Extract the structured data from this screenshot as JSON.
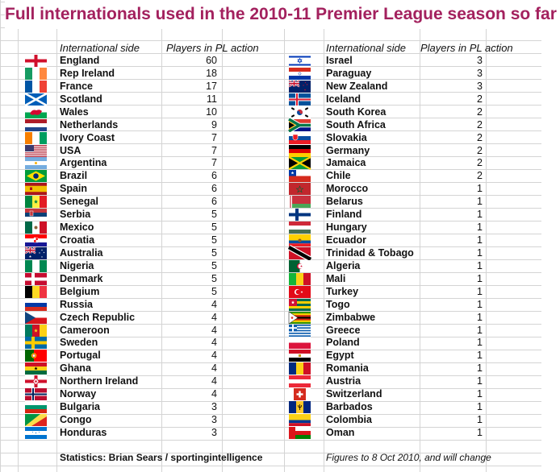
{
  "title": "Full internationals used in the 2010-11 Premier League season so far",
  "headers": {
    "side": "International side",
    "players": "Players in PL action"
  },
  "left": [
    {
      "name": "England",
      "count": "60",
      "flag": "england-flag"
    },
    {
      "name": "Rep Ireland",
      "count": "18",
      "flag": "ireland-flag"
    },
    {
      "name": "France",
      "count": "17",
      "flag": "france-flag"
    },
    {
      "name": "Scotland",
      "count": "11",
      "flag": "scotland-flag"
    },
    {
      "name": "Wales",
      "count": "10",
      "flag": "wales-flag"
    },
    {
      "name": "Netherlands",
      "count": "9",
      "flag": "netherlands-flag"
    },
    {
      "name": "Ivory Coast",
      "count": "7",
      "flag": "ivory-coast-flag"
    },
    {
      "name": "USA",
      "count": "7",
      "flag": "usa-flag"
    },
    {
      "name": "Argentina",
      "count": "7",
      "flag": "argentina-flag"
    },
    {
      "name": "Brazil",
      "count": "6",
      "flag": "brazil-flag"
    },
    {
      "name": "Spain",
      "count": "6",
      "flag": "spain-flag"
    },
    {
      "name": "Senegal",
      "count": "6",
      "flag": "senegal-flag"
    },
    {
      "name": "Serbia",
      "count": "5",
      "flag": "serbia-flag"
    },
    {
      "name": "Mexico",
      "count": "5",
      "flag": "mexico-flag"
    },
    {
      "name": "Croatia",
      "count": "5",
      "flag": "croatia-flag"
    },
    {
      "name": "Australia",
      "count": "5",
      "flag": "australia-flag"
    },
    {
      "name": "Nigeria",
      "count": "5",
      "flag": "nigeria-flag"
    },
    {
      "name": "Denmark",
      "count": "5",
      "flag": "denmark-flag"
    },
    {
      "name": "Belgium",
      "count": "5",
      "flag": "belgium-flag"
    },
    {
      "name": "Russia",
      "count": "4",
      "flag": "russia-flag"
    },
    {
      "name": "Czech Republic",
      "count": "4",
      "flag": "czech-flag"
    },
    {
      "name": "Cameroon",
      "count": "4",
      "flag": "cameroon-flag"
    },
    {
      "name": "Sweden",
      "count": "4",
      "flag": "sweden-flag"
    },
    {
      "name": "Portugal",
      "count": "4",
      "flag": "portugal-flag"
    },
    {
      "name": "Ghana",
      "count": "4",
      "flag": "ghana-flag"
    },
    {
      "name": "Northern Ireland",
      "count": "4",
      "flag": "northern-ireland-flag"
    },
    {
      "name": "Norway",
      "count": "4",
      "flag": "norway-flag"
    },
    {
      "name": "Bulgaria",
      "count": "3",
      "flag": "bulgaria-flag"
    },
    {
      "name": "Congo",
      "count": "3",
      "flag": "congo-flag"
    },
    {
      "name": "Honduras",
      "count": "3",
      "flag": "honduras-flag"
    }
  ],
  "right": [
    {
      "name": "Israel",
      "count": "3",
      "flag": "israel-flag"
    },
    {
      "name": "Paraguay",
      "count": "3",
      "flag": "paraguay-flag"
    },
    {
      "name": "New Zealand",
      "count": "3",
      "flag": "new-zealand-flag"
    },
    {
      "name": "Iceland",
      "count": "2",
      "flag": "iceland-flag"
    },
    {
      "name": "South Korea",
      "count": "2",
      "flag": "south-korea-flag"
    },
    {
      "name": "South Africa",
      "count": "2",
      "flag": "south-africa-flag"
    },
    {
      "name": "Slovakia",
      "count": "2",
      "flag": "slovakia-flag"
    },
    {
      "name": "Germany",
      "count": "2",
      "flag": "germany-flag"
    },
    {
      "name": "Jamaica",
      "count": "2",
      "flag": "jamaica-flag"
    },
    {
      "name": "Chile",
      "count": "2",
      "flag": "chile-flag"
    },
    {
      "name": "Morocco",
      "count": "1",
      "flag": "morocco-flag"
    },
    {
      "name": "Belarus",
      "count": "1",
      "flag": "belarus-flag"
    },
    {
      "name": "Finland",
      "count": "1",
      "flag": "finland-flag"
    },
    {
      "name": "Hungary",
      "count": "1",
      "flag": "hungary-flag"
    },
    {
      "name": "Ecuador",
      "count": "1",
      "flag": "ecuador-flag"
    },
    {
      "name": "Trinidad & Tobago",
      "count": "1",
      "flag": "trinidad-flag"
    },
    {
      "name": "Algeria",
      "count": "1",
      "flag": "algeria-flag"
    },
    {
      "name": "Mali",
      "count": "1",
      "flag": "mali-flag"
    },
    {
      "name": "Turkey",
      "count": "1",
      "flag": "turkey-flag"
    },
    {
      "name": "Togo",
      "count": "1",
      "flag": "togo-flag"
    },
    {
      "name": "Zimbabwe",
      "count": "1",
      "flag": "zimbabwe-flag"
    },
    {
      "name": "Greece",
      "count": "1",
      "flag": "greece-flag"
    },
    {
      "name": "Poland",
      "count": "1",
      "flag": "poland-flag"
    },
    {
      "name": "Egypt",
      "count": "1",
      "flag": "egypt-flag"
    },
    {
      "name": "Romania",
      "count": "1",
      "flag": "romania-flag"
    },
    {
      "name": "Austria",
      "count": "1",
      "flag": "austria-flag"
    },
    {
      "name": "Switzerland",
      "count": "1",
      "flag": "switzerland-flag"
    },
    {
      "name": "Barbados",
      "count": "1",
      "flag": "barbados-flag"
    },
    {
      "name": "Colombia",
      "count": "1",
      "flag": "colombia-flag"
    },
    {
      "name": "Oman",
      "count": "1",
      "flag": "oman-flag"
    }
  ],
  "footer": {
    "credit": "Statistics: Brian Sears / sportingintelligence",
    "note": "Figures to 8 Oct 2010, and will change"
  },
  "colors": {
    "title": "#a3215e",
    "grid": "#d4d4d4"
  }
}
